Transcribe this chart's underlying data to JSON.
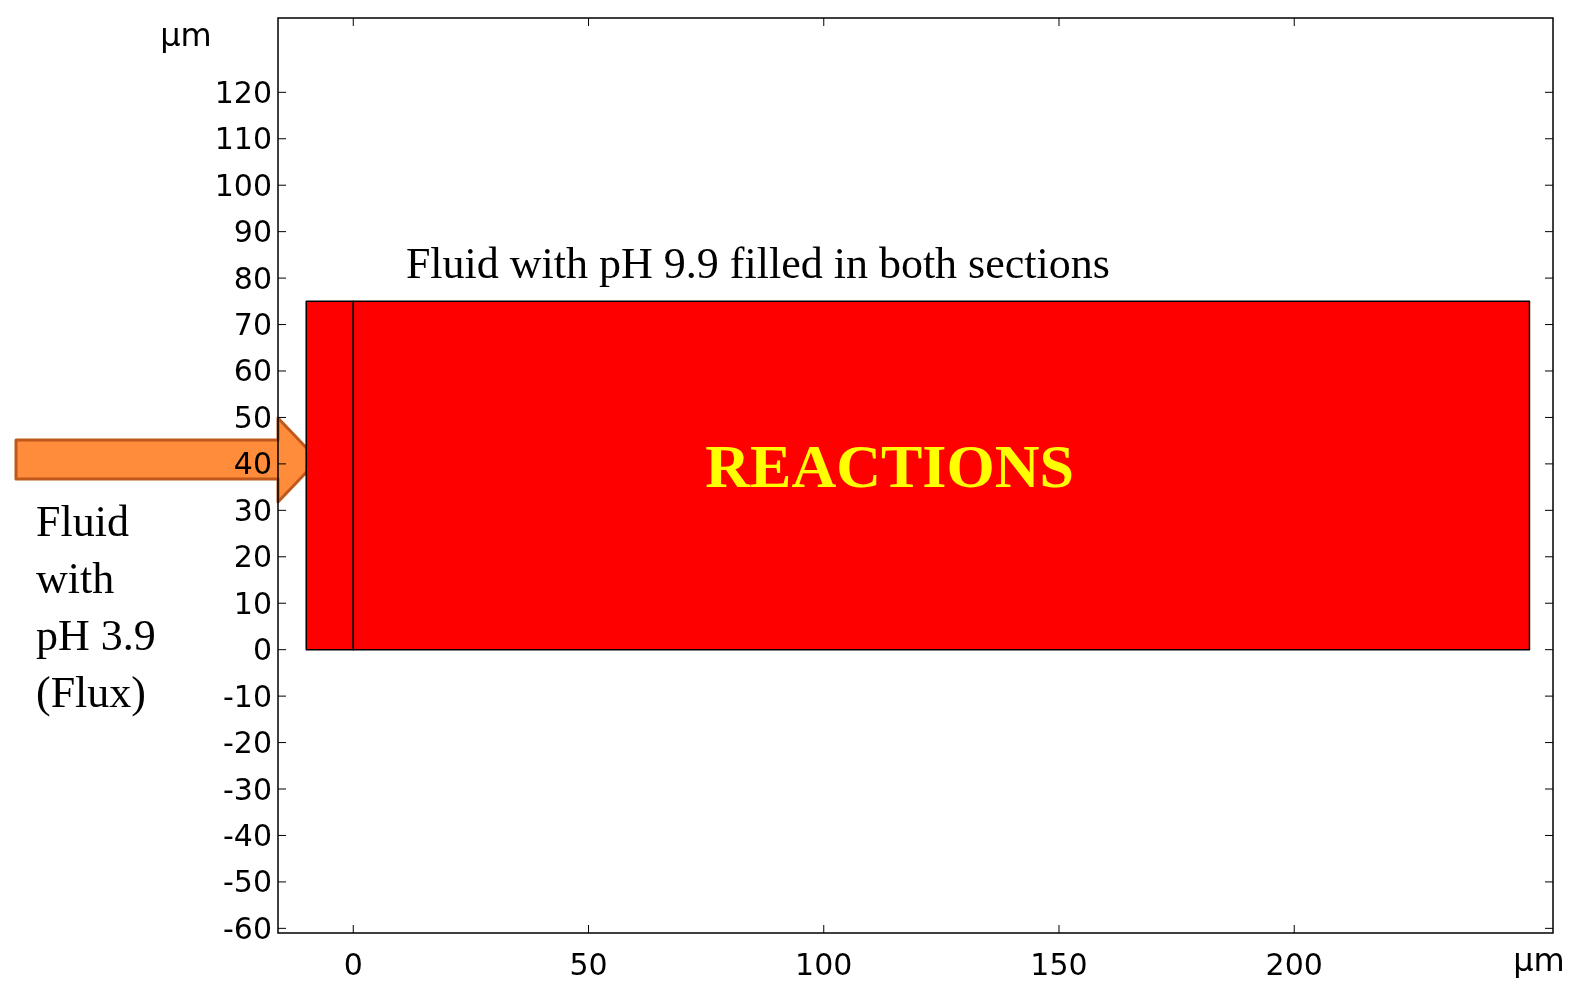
{
  "chart_data": {
    "type": "area",
    "xlabel": "μm",
    "ylabel": "μm",
    "xlim": [
      -16,
      255
    ],
    "ylim": [
      -61,
      136
    ],
    "xticks": [
      0,
      50,
      100,
      150,
      200
    ],
    "yticks": [
      -60,
      -50,
      -40,
      -30,
      -20,
      -10,
      0,
      10,
      20,
      30,
      40,
      50,
      60,
      70,
      80,
      90,
      100,
      110,
      120
    ],
    "series": [
      {
        "color": "#ff0000",
        "x": [
          -10,
          0
        ],
        "values": [
          75,
          75
        ]
      },
      {
        "color": "#ff0000",
        "x": [
          0,
          250
        ],
        "values": [
          75,
          75
        ]
      }
    ],
    "annotations": [
      "Fluid with pH 9.9 filled in both sections",
      "REACTIONS",
      "Fluid with pH 3.9 (Flux)"
    ],
    "grid": false
  }
}
